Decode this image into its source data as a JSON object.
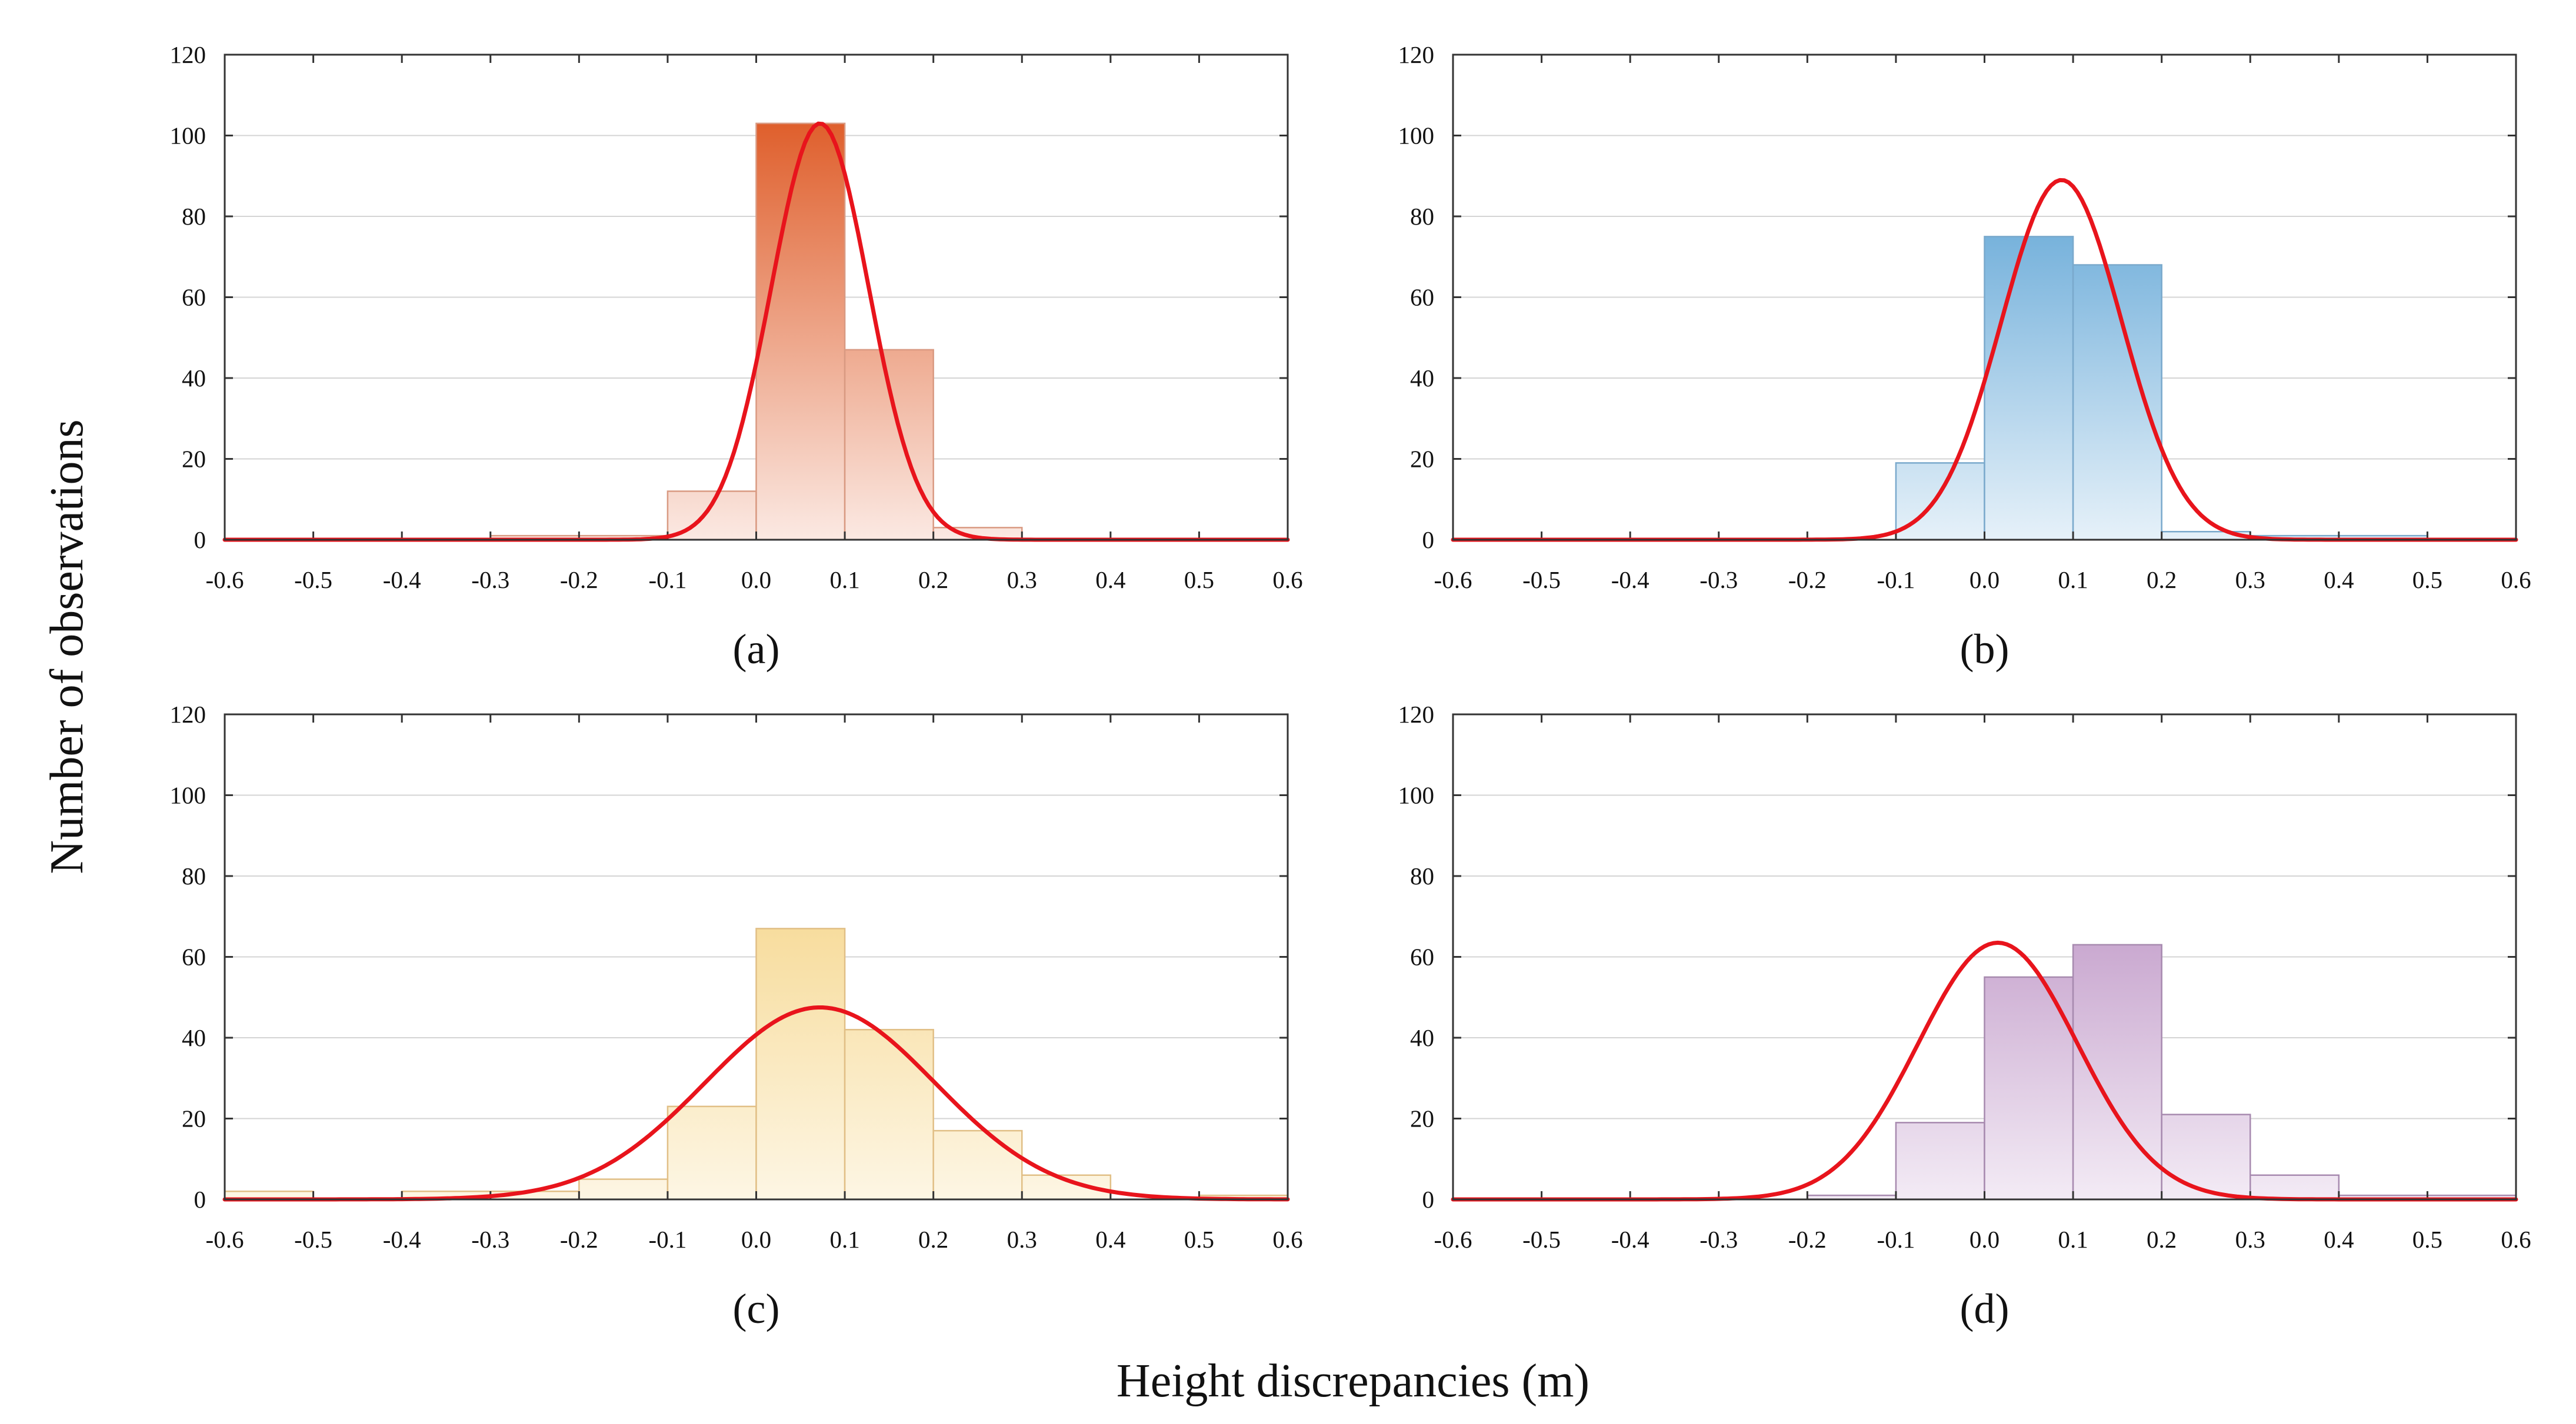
{
  "figure": {
    "ylabel": "Number of observations",
    "xlabel": "Height discrepancies (m)"
  },
  "chart_data": [
    {
      "type": "bar",
      "panel_label": "(a)",
      "bin_edges": [
        -0.6,
        -0.5,
        -0.4,
        -0.3,
        -0.2,
        -0.1,
        0.0,
        0.1,
        0.2,
        0.3,
        0.4,
        0.5,
        0.6
      ],
      "values": [
        0,
        0,
        0,
        1,
        1,
        12,
        103,
        47,
        3,
        0,
        0,
        0
      ],
      "fit": {
        "mean": 0.072,
        "sd": 0.055,
        "peak": 103
      },
      "xlim": [
        -0.6,
        0.6
      ],
      "ylim": [
        0,
        120
      ],
      "xticks": [
        "-0.6",
        "-0.5",
        "-0.4",
        "-0.3",
        "-0.2",
        "-0.1",
        "0.0",
        "0.1",
        "0.2",
        "0.3",
        "0.4",
        "0.5",
        "0.6"
      ],
      "yticks": [
        "0",
        "20",
        "40",
        "60",
        "80",
        "100",
        "120"
      ],
      "colors": {
        "top": "#df5f2c",
        "bottom": "#fbe9e3",
        "stroke": "#d99a82"
      }
    },
    {
      "type": "bar",
      "panel_label": "(b)",
      "bin_edges": [
        -0.6,
        -0.5,
        -0.4,
        -0.3,
        -0.2,
        -0.1,
        0.0,
        0.1,
        0.2,
        0.3,
        0.4,
        0.5,
        0.6
      ],
      "values": [
        0,
        0,
        0,
        0,
        0,
        19,
        75,
        68,
        2,
        1,
        1,
        0
      ],
      "fit": {
        "mean": 0.087,
        "sd": 0.068,
        "peak": 89
      },
      "xlim": [
        -0.6,
        0.6
      ],
      "ylim": [
        0,
        120
      ],
      "xticks": [
        "-0.6",
        "-0.5",
        "-0.4",
        "-0.3",
        "-0.2",
        "-0.1",
        "0.0",
        "0.1",
        "0.2",
        "0.3",
        "0.4",
        "0.5",
        "0.6"
      ],
      "yticks": [
        "0",
        "20",
        "40",
        "60",
        "80",
        "100",
        "120"
      ],
      "colors": {
        "top": "#4e9bd1",
        "bottom": "#e6f1f9",
        "stroke": "#7aa9cc"
      }
    },
    {
      "type": "bar",
      "panel_label": "(c)",
      "bin_edges": [
        -0.6,
        -0.5,
        -0.4,
        -0.3,
        -0.2,
        -0.1,
        0.0,
        0.1,
        0.2,
        0.3,
        0.4,
        0.5,
        0.6
      ],
      "values": [
        2,
        0,
        2,
        2,
        5,
        23,
        67,
        42,
        17,
        6,
        0,
        1
      ],
      "fit": {
        "mean": 0.072,
        "sd": 0.13,
        "peak": 47.5
      },
      "xlim": [
        -0.6,
        0.6
      ],
      "ylim": [
        0,
        120
      ],
      "xticks": [
        "-0.6",
        "-0.5",
        "-0.4",
        "-0.3",
        "-0.2",
        "-0.1",
        "0.0",
        "0.1",
        "0.2",
        "0.3",
        "0.4",
        "0.5",
        "0.6"
      ],
      "yticks": [
        "0",
        "20",
        "40",
        "60",
        "80",
        "100",
        "120"
      ],
      "colors": {
        "top": "#f4cf78",
        "bottom": "#fdf6e4",
        "stroke": "#e1bf86"
      }
    },
    {
      "type": "bar",
      "panel_label": "(d)",
      "bin_edges": [
        -0.6,
        -0.5,
        -0.4,
        -0.3,
        -0.2,
        -0.1,
        0.0,
        0.1,
        0.2,
        0.3,
        0.4,
        0.5,
        0.6
      ],
      "values": [
        0,
        0,
        0,
        0,
        1,
        19,
        55,
        63,
        21,
        6,
        1,
        1
      ],
      "fit": {
        "mean": 0.015,
        "sd": 0.09,
        "peak": 63.5
      },
      "xlim": [
        -0.6,
        0.6
      ],
      "ylim": [
        0,
        120
      ],
      "xticks": [
        "-0.6",
        "-0.5",
        "-0.4",
        "-0.3",
        "-0.2",
        "-0.1",
        "0.0",
        "0.1",
        "0.2",
        "0.3",
        "0.4",
        "0.5",
        "0.6"
      ],
      "yticks": [
        "0",
        "20",
        "40",
        "60",
        "80",
        "100",
        "120"
      ],
      "colors": {
        "top": "#b07fb9",
        "bottom": "#f3ebf5",
        "stroke": "#a78aaf"
      }
    }
  ]
}
